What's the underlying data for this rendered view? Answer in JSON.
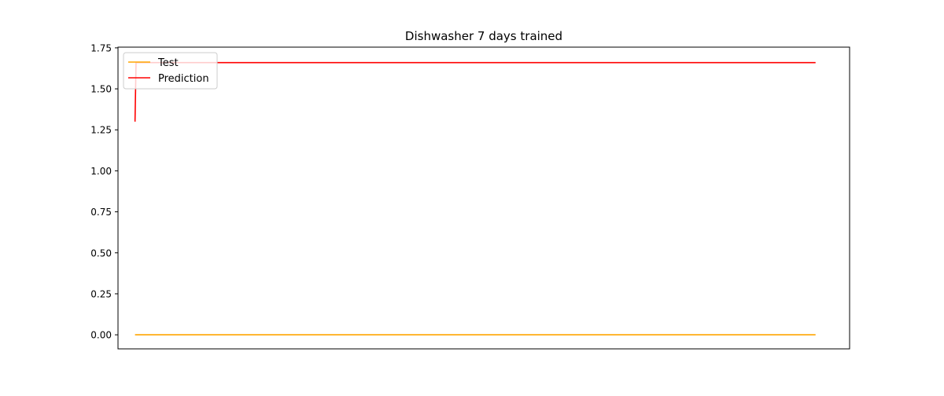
{
  "chart_data": {
    "type": "line",
    "title": "Dishwasher 7 days trained",
    "xlabel": "",
    "ylabel": "",
    "x_ticks_visible": false,
    "xlim": [
      -0.5,
      21
    ],
    "ylim": [
      -0.0857,
      1.7543
    ],
    "y_ticks": [
      {
        "value": 0.0,
        "label": "0.00"
      },
      {
        "value": 0.25,
        "label": "0.25"
      },
      {
        "value": 0.5,
        "label": "0.50"
      },
      {
        "value": 0.75,
        "label": "0.75"
      },
      {
        "value": 1.0,
        "label": "1.00"
      },
      {
        "value": 1.25,
        "label": "1.25"
      },
      {
        "value": 1.5,
        "label": "1.50"
      },
      {
        "value": 1.75,
        "label": "1.75"
      }
    ],
    "grid": false,
    "legend_position": "upper left",
    "series": [
      {
        "name": "Test",
        "color": "#ffa500",
        "points": [
          [
            0,
            0.0
          ],
          [
            20,
            0.0
          ]
        ]
      },
      {
        "name": "Prediction",
        "color": "#ff0000",
        "points": [
          [
            0,
            1.3
          ],
          [
            0.03,
            1.66
          ],
          [
            20,
            1.66
          ]
        ]
      }
    ]
  }
}
